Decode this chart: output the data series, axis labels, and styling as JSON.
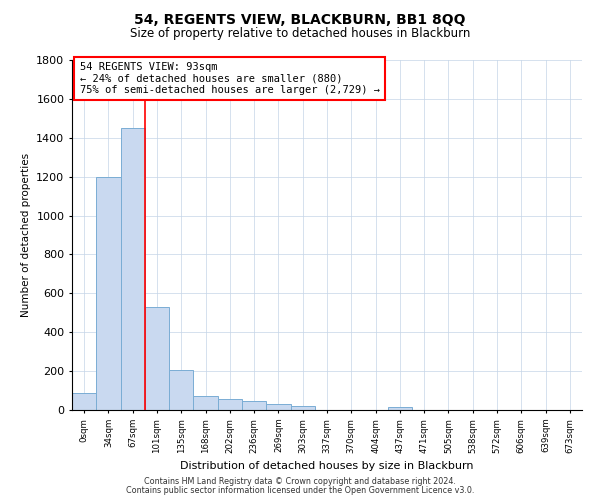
{
  "title": "54, REGENTS VIEW, BLACKBURN, BB1 8QQ",
  "subtitle": "Size of property relative to detached houses in Blackburn",
  "xlabel": "Distribution of detached houses by size in Blackburn",
  "ylabel": "Number of detached properties",
  "bar_color": "#c9d9f0",
  "bar_edge_color": "#7aadd4",
  "categories": [
    "0sqm",
    "34sqm",
    "67sqm",
    "101sqm",
    "135sqm",
    "168sqm",
    "202sqm",
    "236sqm",
    "269sqm",
    "303sqm",
    "337sqm",
    "370sqm",
    "404sqm",
    "437sqm",
    "471sqm",
    "505sqm",
    "538sqm",
    "572sqm",
    "606sqm",
    "639sqm",
    "673sqm"
  ],
  "values": [
    90,
    1200,
    1450,
    530,
    205,
    70,
    55,
    45,
    30,
    20,
    0,
    0,
    0,
    15,
    0,
    0,
    0,
    0,
    0,
    0,
    0
  ],
  "ylim": [
    0,
    1800
  ],
  "yticks": [
    0,
    200,
    400,
    600,
    800,
    1000,
    1200,
    1400,
    1600,
    1800
  ],
  "property_label": "54 REGENTS VIEW: 93sqm",
  "annotation_line1": "← 24% of detached houses are smaller (880)",
  "annotation_line2": "75% of semi-detached houses are larger (2,729) →",
  "red_line_x": 2.5,
  "footer1": "Contains HM Land Registry data © Crown copyright and database right 2024.",
  "footer2": "Contains public sector information licensed under the Open Government Licence v3.0.",
  "background_color": "#ffffff",
  "grid_color": "#c5d5e8"
}
